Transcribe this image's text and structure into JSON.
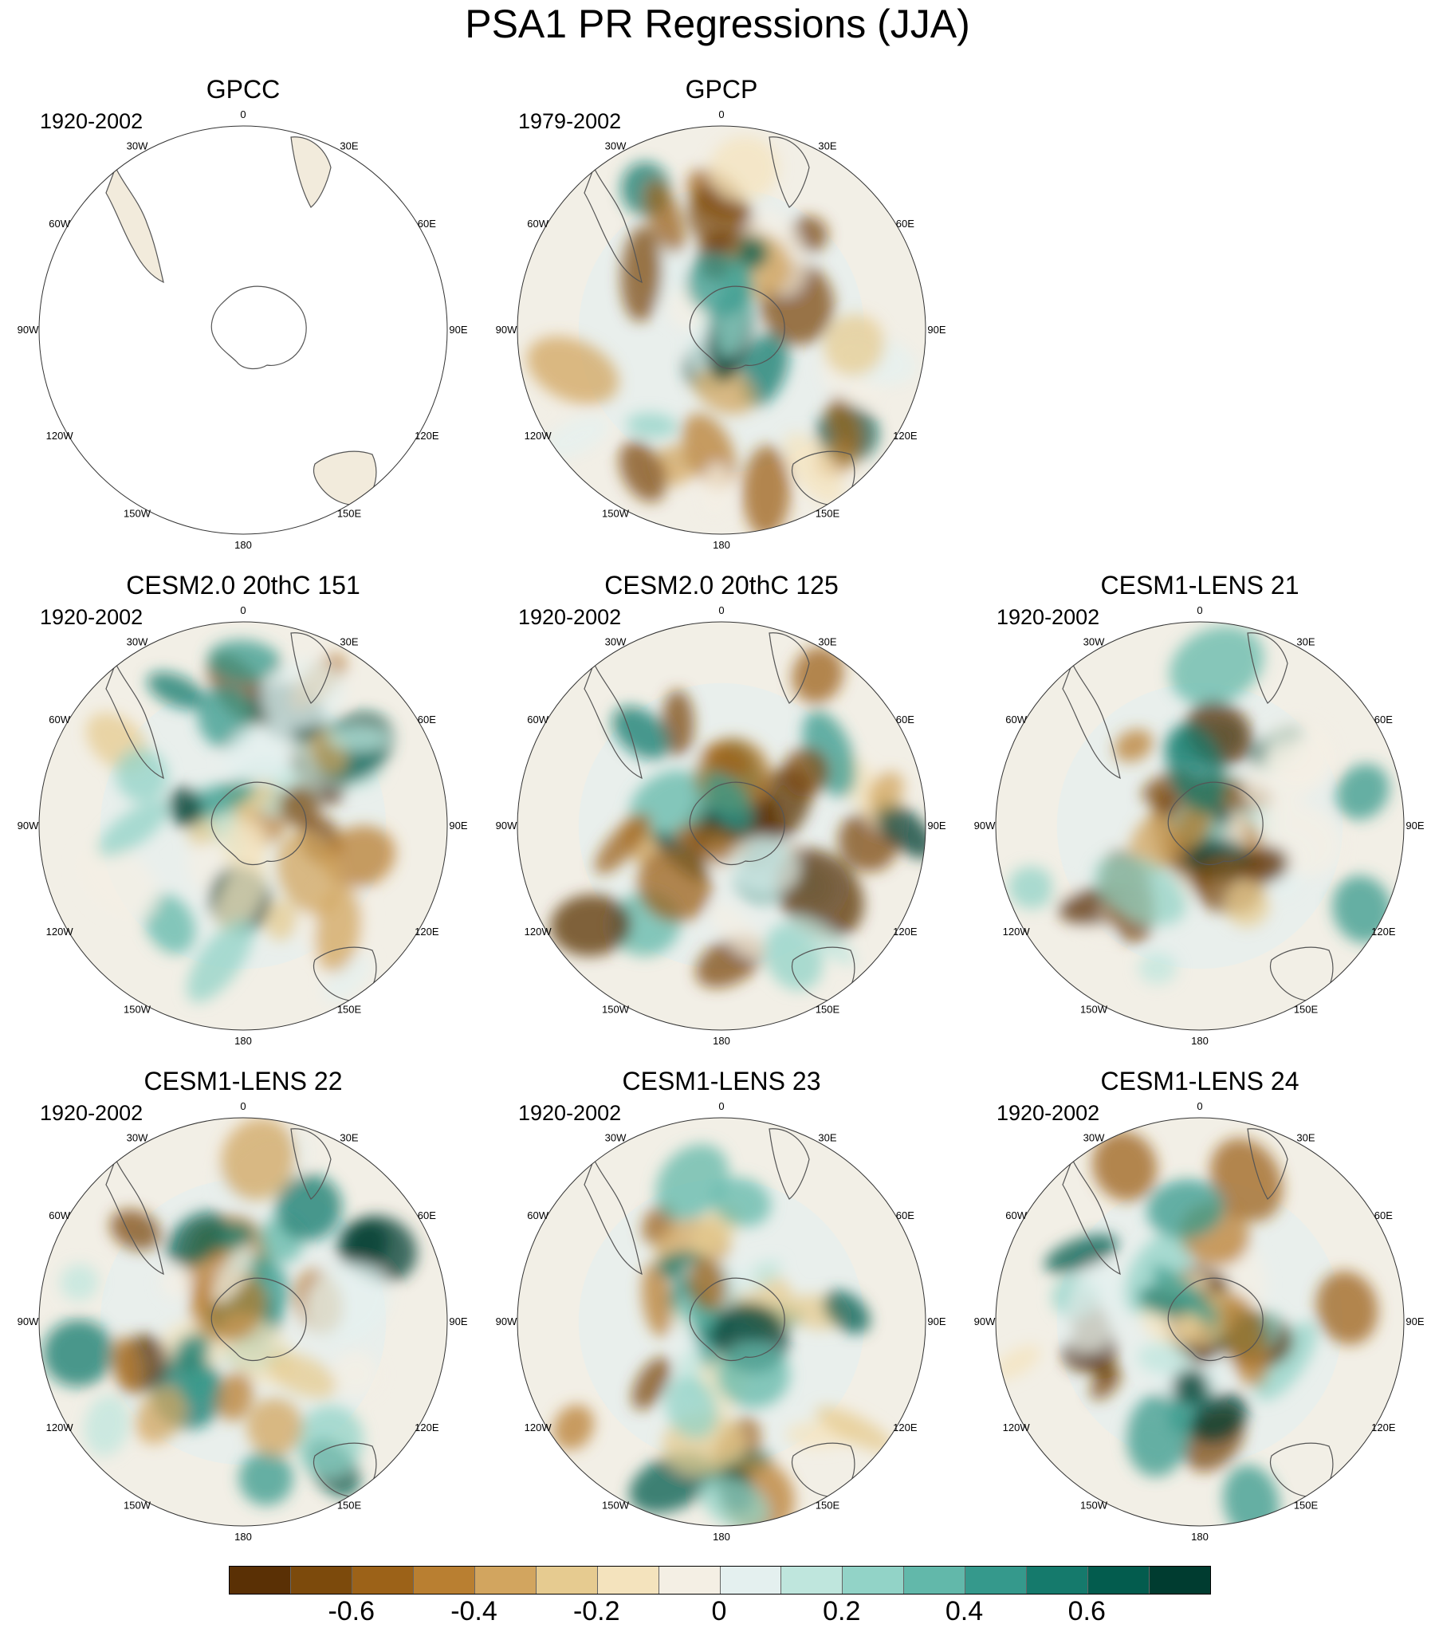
{
  "title": "PSA1 PR Regressions (JJA)",
  "longitude_labels": [
    "0",
    "30E",
    "60E",
    "90E",
    "120E",
    "150E",
    "180",
    "150W",
    "120W",
    "90W",
    "60W",
    "30W"
  ],
  "panels": [
    {
      "title": "GPCC",
      "period": "1920-2002",
      "shading": "sparse"
    },
    {
      "title": "GPCP",
      "period": "1979-2002",
      "shading": "full"
    },
    {
      "title": "CESM2.0 20thC 151",
      "period": "1920-2002",
      "shading": "full"
    },
    {
      "title": "CESM2.0 20thC 125",
      "period": "1920-2002",
      "shading": "full"
    },
    {
      "title": "CESM1-LENS 21",
      "period": "1920-2002",
      "shading": "full"
    },
    {
      "title": "CESM1-LENS 22",
      "period": "1920-2002",
      "shading": "full"
    },
    {
      "title": "CESM1-LENS 23",
      "period": "1920-2002",
      "shading": "full"
    },
    {
      "title": "CESM1-LENS 24",
      "period": "1920-2002",
      "shading": "full"
    }
  ],
  "colorbar": {
    "colors": [
      "#5a3005",
      "#7c4a0c",
      "#9c6218",
      "#b97f31",
      "#d2a55f",
      "#e6cb90",
      "#f4e3bd",
      "#f4efe4",
      "#e4f0ef",
      "#bfe6dd",
      "#92d3c7",
      "#62b8aa",
      "#35998c",
      "#157a6c",
      "#035c4e",
      "#003c30"
    ],
    "tick_labels": [
      "-0.6",
      "-0.4",
      "-0.2",
      "0",
      "0.2",
      "0.4",
      "0.6"
    ]
  }
}
